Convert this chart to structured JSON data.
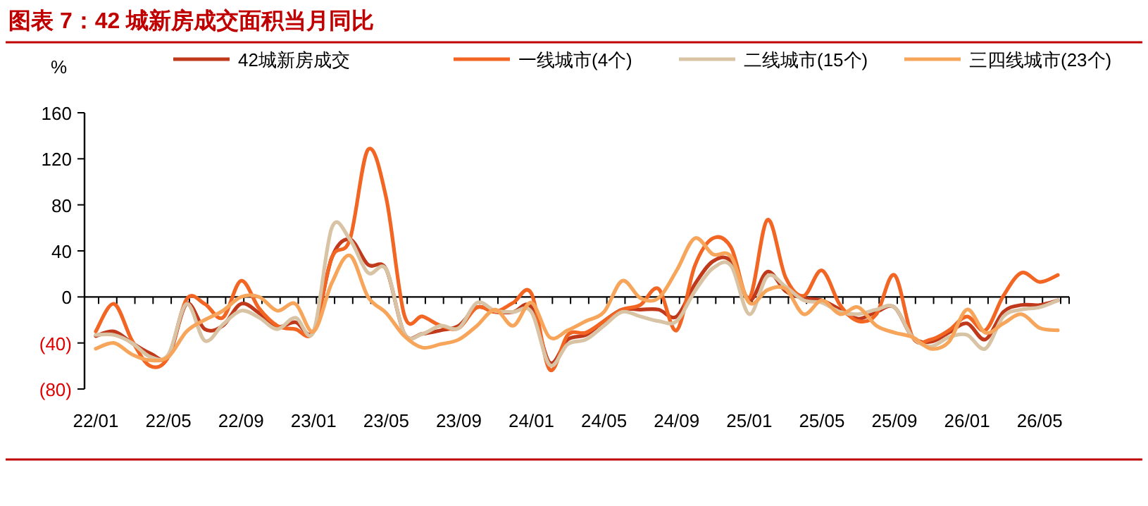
{
  "chart_data": {
    "type": "line",
    "title": "图表 7：42 城新房成交面积当月同比",
    "ylabel": "%",
    "categories": [
      "22/01",
      null,
      null,
      null,
      "22/05",
      null,
      null,
      null,
      "22/09",
      null,
      null,
      null,
      "23/01",
      null,
      null,
      null,
      "23/05",
      null,
      null,
      null,
      "23/09",
      null,
      null,
      null,
      "24/01",
      null,
      null,
      null,
      "24/05",
      null,
      null,
      null,
      "24/09",
      null,
      null,
      null,
      "25/01",
      null,
      null,
      null,
      "25/05",
      null,
      null,
      null,
      "25/09",
      null,
      null,
      null,
      "26/01",
      null,
      null,
      null,
      "26/05",
      null
    ],
    "series": [
      {
        "name": "42城新房成交",
        "color": "#c0391b",
        "values": [
          -34,
          -30,
          -40,
          -49,
          -52,
          -6,
          -28,
          -25,
          -6,
          -14,
          -26,
          -22,
          -30,
          34,
          50,
          28,
          24,
          -32,
          -32,
          -29,
          -25,
          -9,
          -13,
          -13,
          -9,
          -57,
          -37,
          -33,
          -21,
          -11,
          -11,
          -11,
          -17,
          11,
          31,
          31,
          -3,
          22,
          5,
          -1,
          -3,
          -11,
          -19,
          -13,
          -9,
          -35,
          -39,
          -31,
          -23,
          -37,
          -13,
          -7,
          -7,
          -3
        ]
      },
      {
        "name": "一线城市(4个)",
        "color": "#f26522",
        "values": [
          -30,
          -6,
          -38,
          -60,
          -52,
          -2,
          -6,
          -18,
          14,
          -10,
          -25,
          -28,
          -30,
          34,
          50,
          128,
          86,
          -16,
          -17,
          -25,
          -27,
          -9,
          -13,
          -5,
          3,
          -63,
          -33,
          -31,
          -21,
          -11,
          -7,
          7,
          -29,
          27,
          51,
          43,
          -1,
          67,
          17,
          1,
          23,
          -7,
          -21,
          -15,
          19,
          -35,
          -37,
          -29,
          -17,
          -29,
          1,
          21,
          13,
          19
        ]
      },
      {
        "name": "二线城市(15个)",
        "color": "#d9c3a5",
        "values": [
          -33,
          -33,
          -40,
          -52,
          -50,
          -6,
          -38,
          -24,
          -12,
          -18,
          -28,
          -18,
          -30,
          60,
          50,
          21,
          24,
          -32,
          -32,
          -25,
          -27,
          -5,
          -12,
          -13,
          -13,
          -59,
          -41,
          -37,
          -25,
          -13,
          -17,
          -21,
          -21,
          5,
          25,
          27,
          -15,
          18,
          9,
          -3,
          -5,
          -13,
          -15,
          -11,
          -9,
          -35,
          -43,
          -35,
          -33,
          -45,
          -17,
          -11,
          -9,
          -3
        ]
      },
      {
        "name": "三四线城市(23个)",
        "color": "#f7a55a",
        "values": [
          -45,
          -40,
          -50,
          -55,
          -52,
          -30,
          -20,
          -12,
          0,
          0,
          -12,
          -6,
          -30,
          12,
          36,
          0,
          -14,
          -34,
          -44,
          -41,
          -37,
          -25,
          -11,
          -25,
          -5,
          -35,
          -29,
          -21,
          -13,
          14,
          -1,
          -1,
          23,
          51,
          37,
          35,
          -5,
          6,
          7,
          -15,
          -3,
          -15,
          -9,
          -25,
          -31,
          -35,
          -45,
          -39,
          -11,
          -31,
          -23,
          -15,
          -27,
          -29
        ]
      }
    ],
    "ylim": [
      -80,
      160
    ],
    "yticks": [
      {
        "value": -80,
        "label": "(80)"
      },
      {
        "value": -40,
        "label": "(40)"
      },
      0,
      40,
      80,
      120,
      160
    ],
    "legend": "top"
  }
}
